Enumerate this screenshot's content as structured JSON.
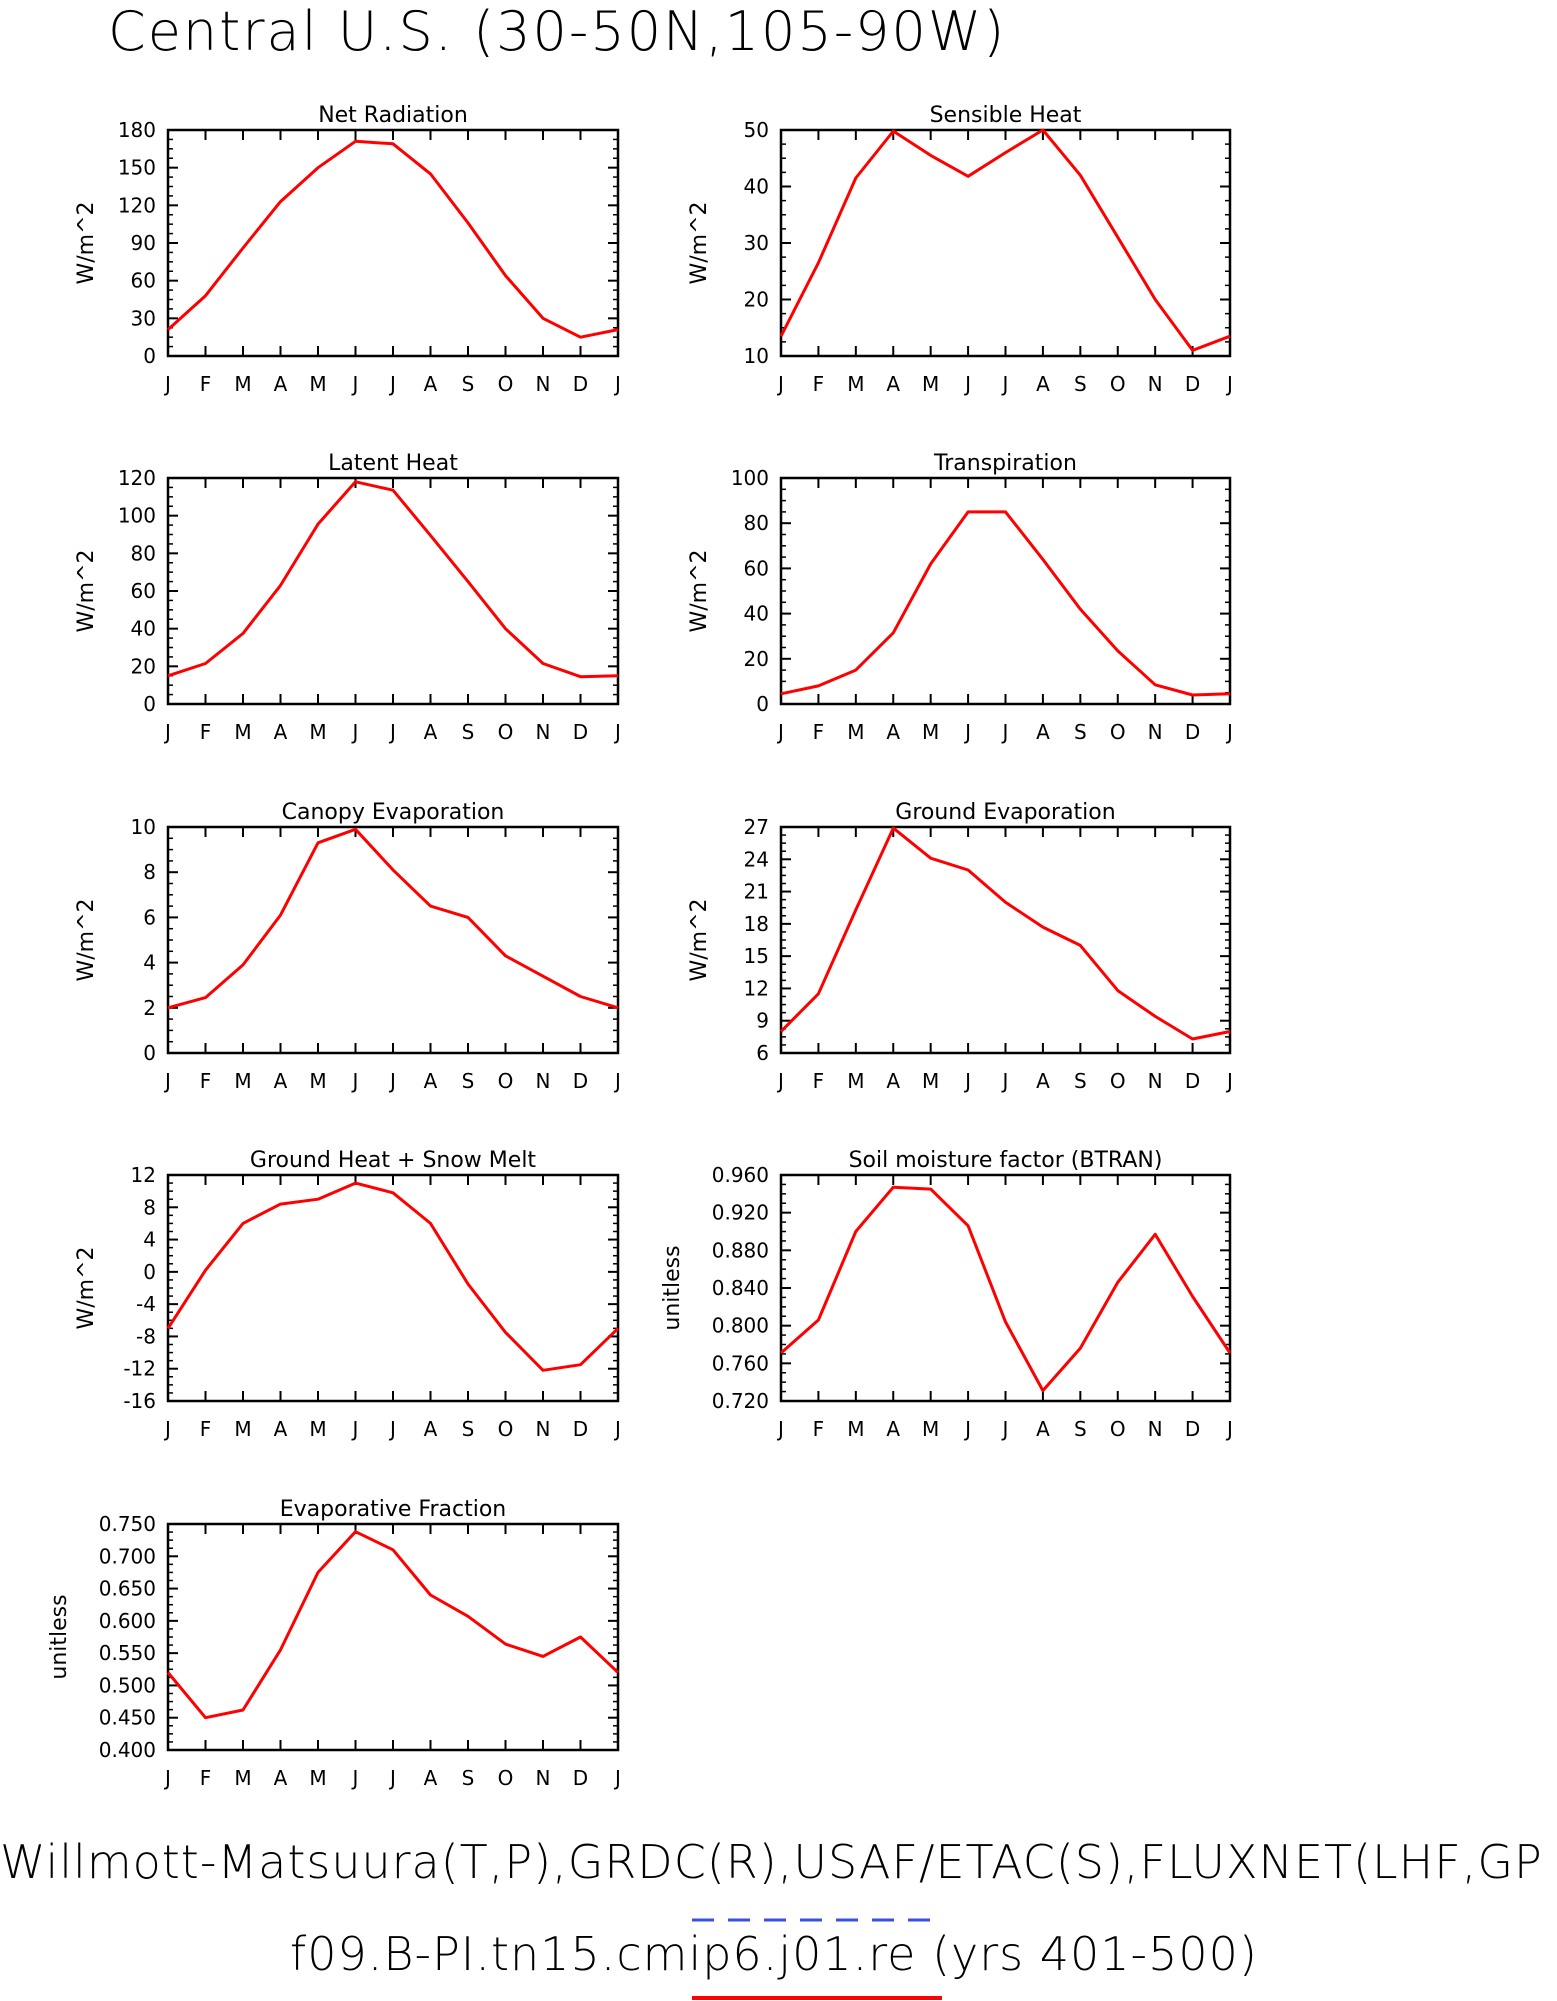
{
  "page_title": "Central U.S. (30-50N,105-90W)",
  "footer": {
    "line1": "Willmott-Matsuura(T,P),GRDC(R),USAF/ETAC(S),FLUXNET(LHF,GP",
    "line2": "f09.B-PI.tn15.cmip6.j01.re (yrs 401-500)",
    "obs_line_color": "#3a4fe0",
    "model_line_color": "#ff0000"
  },
  "colors": {
    "series": "#ff0000",
    "axis": "#000000"
  },
  "chart_data": [
    {
      "type": "line",
      "title": "Net Radiation",
      "ylabel": "W/m^2",
      "categories": [
        "J",
        "F",
        "M",
        "A",
        "M",
        "J",
        "J",
        "A",
        "S",
        "O",
        "N",
        "D",
        "J"
      ],
      "values": [
        21,
        48,
        86,
        123,
        150,
        171,
        169,
        145,
        106,
        64,
        30,
        15,
        21
      ],
      "ylim": [
        0,
        180
      ],
      "yticks": [
        "0",
        "30",
        "60",
        "90",
        "120",
        "150",
        "180"
      ]
    },
    {
      "type": "line",
      "title": "Sensible Heat",
      "ylabel": "W/m^2",
      "categories": [
        "J",
        "F",
        "M",
        "A",
        "M",
        "J",
        "J",
        "A",
        "S",
        "O",
        "N",
        "D",
        "J"
      ],
      "values": [
        13.5,
        26.5,
        41.5,
        49.8,
        45.5,
        41.8,
        46,
        50,
        42,
        31,
        20,
        11,
        13.5
      ],
      "ylim": [
        10,
        50
      ],
      "yticks": [
        "10",
        "20",
        "30",
        "40",
        "50"
      ]
    },
    {
      "type": "line",
      "title": "Latent Heat",
      "ylabel": "W/m^2",
      "categories": [
        "J",
        "F",
        "M",
        "A",
        "M",
        "J",
        "J",
        "A",
        "S",
        "O",
        "N",
        "D",
        "J"
      ],
      "values": [
        15,
        21.5,
        37.5,
        63,
        95.5,
        118,
        113.5,
        89.5,
        65,
        40,
        21.5,
        14.5,
        15
      ],
      "ylim": [
        0,
        120
      ],
      "yticks": [
        "0",
        "20",
        "40",
        "60",
        "80",
        "100",
        "120"
      ]
    },
    {
      "type": "line",
      "title": "Transpiration",
      "ylabel": "W/m^2",
      "categories": [
        "J",
        "F",
        "M",
        "A",
        "M",
        "J",
        "J",
        "A",
        "S",
        "O",
        "N",
        "D",
        "J"
      ],
      "values": [
        4.5,
        8,
        15,
        31.5,
        62,
        85,
        85,
        64,
        42,
        23.5,
        8.5,
        4,
        4.5
      ],
      "ylim": [
        0,
        100
      ],
      "yticks": [
        "0",
        "20",
        "40",
        "60",
        "80",
        "100"
      ]
    },
    {
      "type": "line",
      "title": "Canopy Evaporation",
      "ylabel": "W/m^2",
      "categories": [
        "J",
        "F",
        "M",
        "A",
        "M",
        "J",
        "J",
        "A",
        "S",
        "O",
        "N",
        "D",
        "J"
      ],
      "values": [
        2,
        2.45,
        3.9,
        6.1,
        9.3,
        9.9,
        8.1,
        6.5,
        6,
        4.3,
        3.4,
        2.5,
        2
      ],
      "ylim": [
        0,
        10
      ],
      "yticks": [
        "0",
        "2",
        "4",
        "6",
        "8",
        "10"
      ]
    },
    {
      "type": "line",
      "title": "Ground Evaporation",
      "ylabel": "W/m^2",
      "categories": [
        "J",
        "F",
        "M",
        "A",
        "M",
        "J",
        "J",
        "A",
        "S",
        "O",
        "N",
        "D",
        "J"
      ],
      "values": [
        8,
        11.5,
        19.3,
        26.9,
        24.1,
        23,
        20,
        17.7,
        16,
        11.8,
        9.4,
        7.3,
        8
      ],
      "ylim": [
        6,
        27
      ],
      "yticks": [
        "6",
        "9",
        "12",
        "15",
        "18",
        "21",
        "24",
        "27"
      ]
    },
    {
      "type": "line",
      "title": "Ground Heat + Snow Melt",
      "ylabel": "W/m^2",
      "categories": [
        "J",
        "F",
        "M",
        "A",
        "M",
        "J",
        "J",
        "A",
        "S",
        "O",
        "N",
        "D",
        "J"
      ],
      "values": [
        -7,
        0.2,
        6,
        8.4,
        9,
        11,
        9.8,
        6,
        -1.5,
        -7.5,
        -12.2,
        -11.5,
        -7
      ],
      "ylim": [
        -16,
        12
      ],
      "yticks": [
        "-16",
        "-12",
        "-8",
        "-4",
        "0",
        "4",
        "8",
        "12"
      ]
    },
    {
      "type": "line",
      "title": "Soil moisture factor (BTRAN)",
      "ylabel": "unitless",
      "categories": [
        "J",
        "F",
        "M",
        "A",
        "M",
        "J",
        "J",
        "A",
        "S",
        "O",
        "N",
        "D",
        "J"
      ],
      "values": [
        0.771,
        0.806,
        0.9,
        0.947,
        0.945,
        0.906,
        0.804,
        0.731,
        0.776,
        0.846,
        0.897,
        0.831,
        0.771
      ],
      "ylim": [
        0.72,
        0.96
      ],
      "yticks": [
        "0.720",
        "0.760",
        "0.800",
        "0.840",
        "0.880",
        "0.920",
        "0.960"
      ]
    },
    {
      "type": "line",
      "title": "Evaporative Fraction",
      "ylabel": "unitless",
      "categories": [
        "J",
        "F",
        "M",
        "A",
        "M",
        "J",
        "J",
        "A",
        "S",
        "O",
        "N",
        "D",
        "J"
      ],
      "values": [
        0.52,
        0.45,
        0.462,
        0.555,
        0.675,
        0.738,
        0.71,
        0.64,
        0.607,
        0.564,
        0.545,
        0.575,
        0.52
      ],
      "ylim": [
        0.4,
        0.75
      ],
      "yticks": [
        "0.400",
        "0.450",
        "0.500",
        "0.550",
        "0.600",
        "0.650",
        "0.700",
        "0.750"
      ]
    }
  ]
}
